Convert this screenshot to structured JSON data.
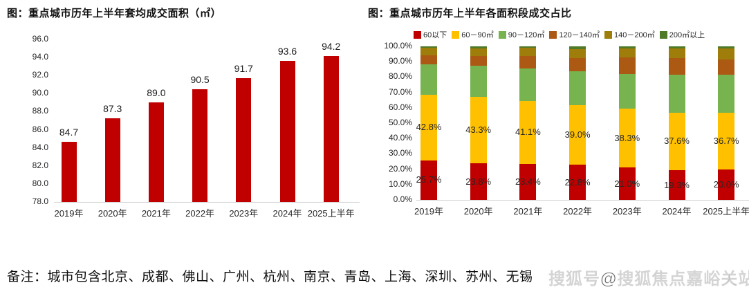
{
  "left_chart": {
    "title": "图：重点城市历年上半年套均成交面积（㎡）"
  },
  "right_chart": {
    "title": "图：重点城市历年上半年各面积段成交占比"
  },
  "note": "备注：城市包含北京、成都、佛山、广州、杭州、南京、青岛、上海、深圳、苏州、无锡",
  "watermark": "搜狐号@搜狐焦点嘉峪关站",
  "chart_data": [
    {
      "type": "bar",
      "title": "图：重点城市历年上半年套均成交面积（㎡）",
      "categories": [
        "2019年",
        "2020年",
        "2021年",
        "2022年",
        "2023年",
        "2024年",
        "2025上半年"
      ],
      "values": [
        84.7,
        87.3,
        89.0,
        90.5,
        91.7,
        93.6,
        94.2
      ],
      "value_labels": [
        "84.7",
        "87.3",
        "89.0",
        "90.5",
        "91.7",
        "93.6",
        "94.2"
      ],
      "xlabel": "",
      "ylabel": "",
      "ylim": [
        78.0,
        96.0
      ],
      "yticks": [
        "96.0",
        "94.0",
        "92.0",
        "90.0",
        "88.0",
        "86.0",
        "84.0",
        "82.0",
        "80.0",
        "78.0"
      ],
      "ytick_values": [
        96,
        94,
        92,
        90,
        88,
        86,
        84,
        82,
        80,
        78
      ],
      "bar_color": "#C00000",
      "grid": false,
      "legend_position": "none"
    },
    {
      "type": "bar",
      "subtype": "stacked-100pct",
      "title": "图：重点城市历年上半年各面积段成交占比",
      "categories": [
        "2019年",
        "2020年",
        "2021年",
        "2022年",
        "2023年",
        "2024年",
        "2025上半年"
      ],
      "series": [
        {
          "name": "60以下",
          "color": "#C00000",
          "values": [
            25.7,
            23.8,
            23.4,
            22.8,
            21.0,
            19.3,
            20.0
          ],
          "labels": [
            "25.7%",
            "23.8%",
            "23.4%",
            "22.8%",
            "21.0%",
            "19.3%",
            "20.0%"
          ],
          "labels_shown": true
        },
        {
          "name": "60－90㎡",
          "color": "#FFC000",
          "values": [
            42.8,
            43.3,
            41.1,
            39.0,
            38.3,
            37.6,
            36.7
          ],
          "labels": [
            "42.8%",
            "43.3%",
            "41.1%",
            "39.0%",
            "38.3%",
            "37.6%",
            "36.7%"
          ],
          "labels_shown": true
        },
        {
          "name": "90－120㎡",
          "color": "#77B34F",
          "values": [
            19.8,
            20.3,
            21.0,
            22.0,
            22.8,
            24.6,
            24.7
          ],
          "labels": [],
          "labels_shown": false,
          "values_estimated_from_pixels": true
        },
        {
          "name": "120－140㎡",
          "color": "#AC5914",
          "values": [
            5.8,
            6.3,
            8.0,
            8.7,
            10.7,
            10.9,
            10.1
          ],
          "labels": [],
          "labels_shown": false,
          "values_estimated_from_pixels": true
        },
        {
          "name": "140－200㎡",
          "color": "#9E7D0A",
          "values": [
            4.9,
            5.1,
            5.5,
            5.8,
            6.0,
            6.3,
            7.0
          ],
          "labels": [],
          "labels_shown": false,
          "values_estimated_from_pixels": true
        },
        {
          "name": "200㎡以上",
          "color": "#4F7A28",
          "values": [
            1.0,
            1.2,
            1.0,
            1.7,
            1.2,
            1.3,
            1.5
          ],
          "labels": [],
          "labels_shown": false,
          "values_estimated_from_pixels": true
        }
      ],
      "xlabel": "",
      "ylabel": "",
      "ylim": [
        0,
        100
      ],
      "yticks": [
        "100.0%",
        "90.0%",
        "80.0%",
        "70.0%",
        "60.0%",
        "50.0%",
        "40.0%",
        "30.0%",
        "20.0%",
        "10.0%",
        "0.0%"
      ],
      "ytick_values": [
        100,
        90,
        80,
        70,
        60,
        50,
        40,
        30,
        20,
        10,
        0
      ],
      "grid": false,
      "legend_position": "top"
    }
  ]
}
